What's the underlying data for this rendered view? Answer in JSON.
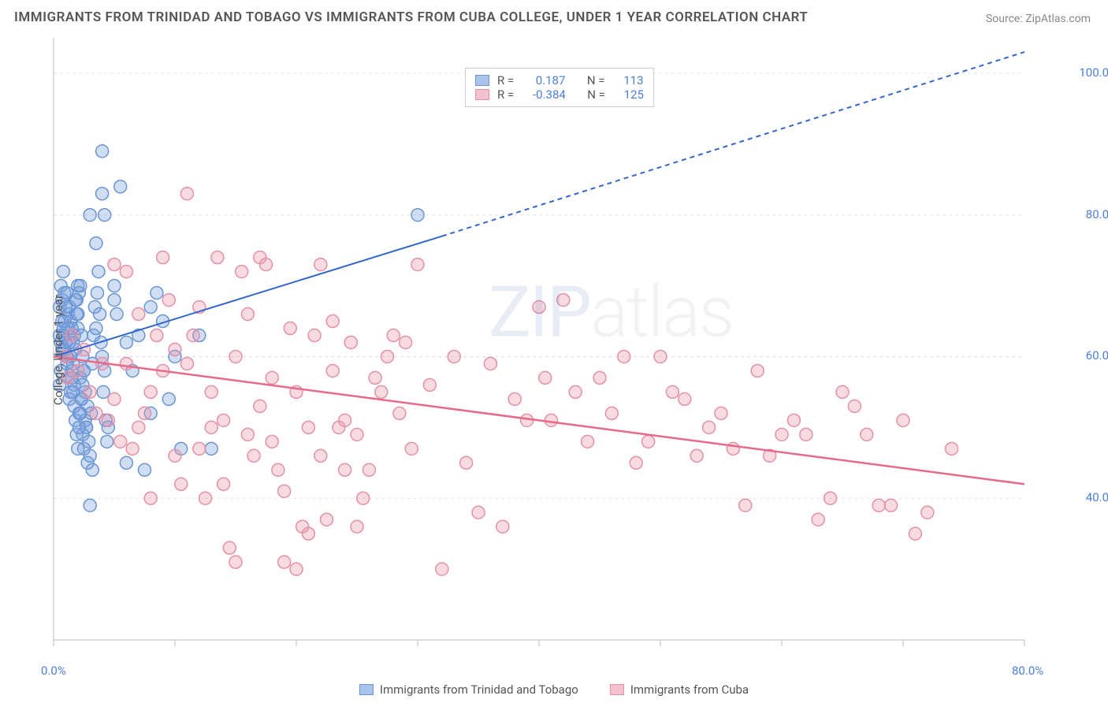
{
  "title": "IMMIGRANTS FROM TRINIDAD AND TOBAGO VS IMMIGRANTS FROM CUBA COLLEGE, UNDER 1 YEAR CORRELATION CHART",
  "source": "Source: ZipAtlas.com",
  "ylabel": "College, Under 1 year",
  "watermark_bold": "ZIP",
  "watermark_light": "atlas",
  "chart": {
    "type": "scatter",
    "xlim": [
      0,
      80
    ],
    "ylim": [
      20,
      105
    ],
    "x_ticks": [
      0,
      10,
      20,
      30,
      40,
      50,
      60,
      70,
      80
    ],
    "x_tick_labels": {
      "0": "0.0%",
      "80": "80.0%"
    },
    "y_ticks": [
      40,
      60,
      80,
      100
    ],
    "y_tick_labels": {
      "40": "40.0%",
      "60": "60.0%",
      "80": "80.0%",
      "100": "100.0%"
    },
    "grid_color": "#e0e0e0",
    "grid_dash": "4,4",
    "background_color": "#ffffff",
    "marker_radius": 8,
    "marker_stroke_width": 1.5,
    "series": [
      {
        "name": "Immigrants from Trinidad and Tobago",
        "fill": "rgba(120,160,220,0.35)",
        "stroke": "#6a95d4",
        "swatch_fill": "#a9c4ea",
        "swatch_border": "#6a95d4",
        "R": "0.187",
        "N": "113",
        "trend": {
          "x1": 0,
          "y1": 60,
          "x2_solid": 32,
          "y2_solid": 77,
          "x2": 80,
          "y2": 103,
          "color": "#3366cc",
          "width": 2
        },
        "points": [
          [
            0.5,
            63
          ],
          [
            0.6,
            62
          ],
          [
            0.7,
            65
          ],
          [
            0.8,
            64
          ],
          [
            0.9,
            61
          ],
          [
            1.0,
            60
          ],
          [
            1.1,
            59
          ],
          [
            1.2,
            66
          ],
          [
            1.3,
            67
          ],
          [
            1.4,
            55
          ],
          [
            1.5,
            58
          ],
          [
            1.6,
            62
          ],
          [
            1.7,
            63
          ],
          [
            1.8,
            68
          ],
          [
            1.9,
            66
          ],
          [
            2.0,
            64
          ],
          [
            2.0,
            70
          ],
          [
            2.1,
            52
          ],
          [
            2.2,
            57
          ],
          [
            2.3,
            54
          ],
          [
            2.4,
            49
          ],
          [
            2.5,
            47
          ],
          [
            2.6,
            51
          ],
          [
            2.7,
            50
          ],
          [
            2.8,
            45
          ],
          [
            3.0,
            39
          ],
          [
            3.0,
            80
          ],
          [
            3.2,
            44
          ],
          [
            3.5,
            76
          ],
          [
            4.0,
            89
          ],
          [
            4.0,
            83
          ],
          [
            4.2,
            80
          ],
          [
            5.0,
            70
          ],
          [
            5.0,
            68
          ],
          [
            5.2,
            66
          ],
          [
            5.5,
            84
          ],
          [
            6.0,
            62
          ],
          [
            6.0,
            45
          ],
          [
            6.5,
            58
          ],
          [
            7.0,
            63
          ],
          [
            7.5,
            44
          ],
          [
            8.0,
            52
          ],
          [
            8.0,
            67
          ],
          [
            8.5,
            69
          ],
          [
            9.0,
            65
          ],
          [
            9.5,
            54
          ],
          [
            10.0,
            60
          ],
          [
            10.5,
            47
          ],
          [
            12.0,
            63
          ],
          [
            13.0,
            47
          ],
          [
            0.5,
            67
          ],
          [
            0.6,
            70
          ],
          [
            0.7,
            68
          ],
          [
            0.8,
            72
          ],
          [
            0.9,
            69
          ],
          [
            1.0,
            62
          ],
          [
            1.1,
            60
          ],
          [
            1.2,
            57
          ],
          [
            1.3,
            54
          ],
          [
            1.4,
            65
          ],
          [
            1.5,
            64
          ],
          [
            1.6,
            59
          ],
          [
            1.7,
            56
          ],
          [
            1.8,
            61
          ],
          [
            1.9,
            68
          ],
          [
            2.0,
            66
          ],
          [
            2.1,
            69
          ],
          [
            2.2,
            70
          ],
          [
            2.3,
            63
          ],
          [
            2.4,
            60
          ],
          [
            2.5,
            58
          ],
          [
            2.6,
            55
          ],
          [
            2.7,
            50
          ],
          [
            2.8,
            53
          ],
          [
            2.9,
            48
          ],
          [
            3.0,
            46
          ],
          [
            3.1,
            52
          ],
          [
            3.2,
            59
          ],
          [
            3.3,
            63
          ],
          [
            3.4,
            67
          ],
          [
            3.5,
            64
          ],
          [
            3.6,
            69
          ],
          [
            3.7,
            72
          ],
          [
            3.8,
            66
          ],
          [
            3.9,
            62
          ],
          [
            4.0,
            60
          ],
          [
            4.1,
            55
          ],
          [
            4.2,
            58
          ],
          [
            4.3,
            51
          ],
          [
            4.4,
            48
          ],
          [
            4.5,
            50
          ],
          [
            30.0,
            80
          ],
          [
            0.5,
            56
          ],
          [
            0.6,
            58
          ],
          [
            0.7,
            61
          ],
          [
            0.8,
            63
          ],
          [
            0.9,
            65
          ],
          [
            1.0,
            67
          ],
          [
            1.1,
            69
          ],
          [
            1.2,
            64
          ],
          [
            1.3,
            62
          ],
          [
            1.4,
            60
          ],
          [
            1.5,
            57
          ],
          [
            1.6,
            55
          ],
          [
            1.7,
            53
          ],
          [
            1.8,
            51
          ],
          [
            1.9,
            49
          ],
          [
            2.0,
            47
          ],
          [
            2.1,
            50
          ],
          [
            2.2,
            52
          ],
          [
            2.3,
            54
          ],
          [
            2.4,
            56
          ],
          [
            2.5,
            58
          ]
        ]
      },
      {
        "name": "Immigrants from Cuba",
        "fill": "rgba(235,150,170,0.35)",
        "stroke": "#e490a6",
        "swatch_fill": "#f4c2cf",
        "swatch_border": "#e490a6",
        "R": "-0.384",
        "N": "125",
        "trend": {
          "x1": 0,
          "y1": 60,
          "x2_solid": 80,
          "y2_solid": 42,
          "x2": 80,
          "y2": 42,
          "color": "#e86a8a",
          "width": 2.5
        },
        "points": [
          [
            1.0,
            60
          ],
          [
            1.2,
            57
          ],
          [
            1.5,
            63
          ],
          [
            2.0,
            58
          ],
          [
            2.5,
            61
          ],
          [
            3.0,
            55
          ],
          [
            3.5,
            52
          ],
          [
            4.0,
            59
          ],
          [
            4.5,
            51
          ],
          [
            5.0,
            54
          ],
          [
            5.5,
            48
          ],
          [
            6.0,
            59
          ],
          [
            6.5,
            47
          ],
          [
            7.0,
            66
          ],
          [
            7.5,
            52
          ],
          [
            8.0,
            40
          ],
          [
            8.5,
            63
          ],
          [
            9.0,
            74
          ],
          [
            9.5,
            68
          ],
          [
            10.0,
            46
          ],
          [
            10.5,
            42
          ],
          [
            11.0,
            83
          ],
          [
            11.5,
            63
          ],
          [
            12.0,
            67
          ],
          [
            12.5,
            40
          ],
          [
            13.0,
            55
          ],
          [
            13.5,
            74
          ],
          [
            14.0,
            51
          ],
          [
            14.5,
            33
          ],
          [
            15.0,
            31
          ],
          [
            15.5,
            72
          ],
          [
            16.0,
            49
          ],
          [
            16.5,
            46
          ],
          [
            17.0,
            74
          ],
          [
            17.5,
            73
          ],
          [
            18.0,
            57
          ],
          [
            18.5,
            44
          ],
          [
            19.0,
            31
          ],
          [
            19.5,
            64
          ],
          [
            20.0,
            30
          ],
          [
            20.5,
            36
          ],
          [
            21.0,
            35
          ],
          [
            21.5,
            63
          ],
          [
            22.0,
            73
          ],
          [
            22.5,
            37
          ],
          [
            23.0,
            65
          ],
          [
            23.5,
            50
          ],
          [
            24.0,
            51
          ],
          [
            24.5,
            62
          ],
          [
            25.0,
            36
          ],
          [
            25.5,
            40
          ],
          [
            26.0,
            44
          ],
          [
            26.5,
            57
          ],
          [
            27.0,
            55
          ],
          [
            27.5,
            60
          ],
          [
            28.0,
            63
          ],
          [
            28.5,
            52
          ],
          [
            29.0,
            62
          ],
          [
            29.5,
            47
          ],
          [
            30.0,
            73
          ],
          [
            31.0,
            56
          ],
          [
            32.0,
            30
          ],
          [
            33.0,
            60
          ],
          [
            34.0,
            45
          ],
          [
            35.0,
            38
          ],
          [
            36.0,
            59
          ],
          [
            37.0,
            36
          ],
          [
            38.0,
            54
          ],
          [
            39.0,
            51
          ],
          [
            40.0,
            67
          ],
          [
            40.5,
            57
          ],
          [
            41.0,
            51
          ],
          [
            42.0,
            68
          ],
          [
            43.0,
            55
          ],
          [
            44.0,
            48
          ],
          [
            45.0,
            57
          ],
          [
            46.0,
            52
          ],
          [
            47.0,
            60
          ],
          [
            48.0,
            45
          ],
          [
            49.0,
            48
          ],
          [
            50.0,
            60
          ],
          [
            51.0,
            55
          ],
          [
            52.0,
            54
          ],
          [
            53.0,
            46
          ],
          [
            54.0,
            50
          ],
          [
            55.0,
            52
          ],
          [
            56.0,
            47
          ],
          [
            57.0,
            39
          ],
          [
            58.0,
            58
          ],
          [
            59.0,
            46
          ],
          [
            60.0,
            49
          ],
          [
            61.0,
            51
          ],
          [
            62.0,
            49
          ],
          [
            63.0,
            37
          ],
          [
            64.0,
            40
          ],
          [
            65.0,
            55
          ],
          [
            66.0,
            53
          ],
          [
            67.0,
            49
          ],
          [
            68.0,
            39
          ],
          [
            69.0,
            39
          ],
          [
            70.0,
            51
          ],
          [
            71.0,
            35
          ],
          [
            72.0,
            38
          ],
          [
            74.0,
            47
          ],
          [
            5.0,
            73
          ],
          [
            6.0,
            72
          ],
          [
            7.0,
            50
          ],
          [
            8.0,
            55
          ],
          [
            9.0,
            58
          ],
          [
            10.0,
            61
          ],
          [
            11.0,
            59
          ],
          [
            12.0,
            47
          ],
          [
            13.0,
            50
          ],
          [
            14.0,
            42
          ],
          [
            15.0,
            60
          ],
          [
            16.0,
            66
          ],
          [
            17.0,
            53
          ],
          [
            18.0,
            48
          ],
          [
            19.0,
            41
          ],
          [
            20.0,
            55
          ],
          [
            21.0,
            50
          ],
          [
            22.0,
            46
          ],
          [
            23.0,
            58
          ],
          [
            24.0,
            44
          ],
          [
            25.0,
            49
          ]
        ]
      }
    ]
  },
  "stats_labels": {
    "R": "R =",
    "N": "N ="
  }
}
